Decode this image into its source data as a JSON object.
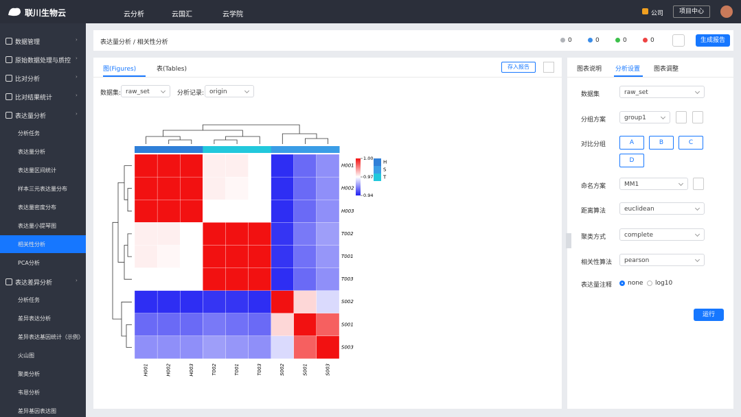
{
  "header": {
    "logo": "联川生物云",
    "nav": [
      "云分析",
      "云国汇",
      "云学院"
    ],
    "company": "公司",
    "project_center": "项目中心"
  },
  "sidebar": [
    {
      "label": "数据管理"
    },
    {
      "label": "原始数据处理与质控"
    },
    {
      "label": "比对分析"
    },
    {
      "label": "比对结果统计"
    },
    {
      "label": "表达量分析",
      "children": [
        "分析任务",
        "表达量分析",
        "表达量区间统计",
        "样本三元表达量分布",
        "表达量密度分布",
        "表达量小提琴图",
        "相关性分析",
        "PCA分析"
      ]
    },
    {
      "label": "表达差异分析",
      "children": [
        "分析任务",
        "差异表达分析",
        "差异表达基因统计（示例）",
        "火山图",
        "聚类分析",
        "韦恩分析",
        "差异基因表达图"
      ]
    }
  ],
  "active_item": "相关性分析",
  "breadcrumb": "表达量分析 / 相关性分析",
  "status": [
    {
      "value": 0,
      "color": "#b0b3b8"
    },
    {
      "value": 0,
      "color": "#3b8de8"
    },
    {
      "value": 0,
      "color": "#3cc04a"
    },
    {
      "value": 0,
      "color": "#ee4444"
    }
  ],
  "report_button": "生成报告",
  "left_panel": {
    "tabs": [
      "图(Figures)",
      "表(Tables)"
    ],
    "save_button": "存入报告",
    "filters": [
      {
        "label": "数据集:",
        "value": "raw_set"
      },
      {
        "label": "分析记录:",
        "value": "origin"
      }
    ]
  },
  "chart_data": {
    "type": "heatmap",
    "rows": [
      "H001",
      "H002",
      "H003",
      "T002",
      "T001",
      "T003",
      "S002",
      "S001",
      "S003"
    ],
    "columns": [
      "H001",
      "H002",
      "H003",
      "T002",
      "T001",
      "T003",
      "S002",
      "S001",
      "S003"
    ],
    "column_groups": [
      "H",
      "H",
      "H",
      "T",
      "T",
      "T",
      "S",
      "S",
      "S"
    ],
    "groups": [
      {
        "name": "H",
        "color": "#2f7fd8"
      },
      {
        "name": "S",
        "color": "#3a9de6"
      },
      {
        "name": "T",
        "color": "#22c8dc"
      }
    ],
    "values": [
      [
        1.0,
        1.0,
        1.0,
        0.972,
        0.972,
        0.97,
        0.942,
        0.95,
        0.955
      ],
      [
        1.0,
        1.0,
        1.0,
        0.972,
        0.971,
        0.97,
        0.942,
        0.95,
        0.955
      ],
      [
        1.0,
        1.0,
        1.0,
        0.97,
        0.97,
        0.97,
        0.942,
        0.95,
        0.955
      ],
      [
        0.972,
        0.972,
        0.97,
        1.0,
        1.0,
        1.0,
        0.943,
        0.952,
        0.957
      ],
      [
        0.972,
        0.971,
        0.97,
        1.0,
        1.0,
        1.0,
        0.943,
        0.951,
        0.956
      ],
      [
        0.97,
        0.97,
        0.97,
        1.0,
        1.0,
        1.0,
        0.942,
        0.95,
        0.955
      ],
      [
        0.942,
        0.942,
        0.942,
        0.943,
        0.943,
        0.942,
        1.0,
        0.975,
        0.965
      ],
      [
        0.95,
        0.95,
        0.95,
        0.952,
        0.951,
        0.95,
        0.975,
        1.0,
        0.99
      ],
      [
        0.955,
        0.955,
        0.955,
        0.957,
        0.956,
        0.955,
        0.965,
        0.99,
        1.0
      ]
    ],
    "clim": [
      0.94,
      1.0
    ],
    "colormap": [
      "#1f1ff2",
      "#ffffff",
      "#f21111"
    ],
    "cticks": [
      {
        "value": 1.0,
        "label": "1.00"
      },
      {
        "value": 0.97,
        "label": "0.97"
      },
      {
        "value": 0.94,
        "label": "0.94"
      }
    ]
  },
  "settings": {
    "tabs": [
      "图表说明",
      "分析设置",
      "图表调整"
    ],
    "fields": [
      {
        "label": "数据集",
        "value": "raw_set"
      },
      {
        "label": "分组方案",
        "value": "group1"
      },
      {
        "label": "对比分组",
        "options": [
          "A",
          "B",
          "C",
          "D"
        ]
      },
      {
        "label": "命名方案",
        "value": "MM1"
      },
      {
        "label": "距离算法",
        "value": "euclidean"
      },
      {
        "label": "聚类方式",
        "value": "complete"
      },
      {
        "label": "相关性算法",
        "value": "pearson"
      },
      {
        "label": "表达量注释",
        "radio": [
          "none",
          "log10"
        ]
      }
    ],
    "run_button": "运行"
  }
}
